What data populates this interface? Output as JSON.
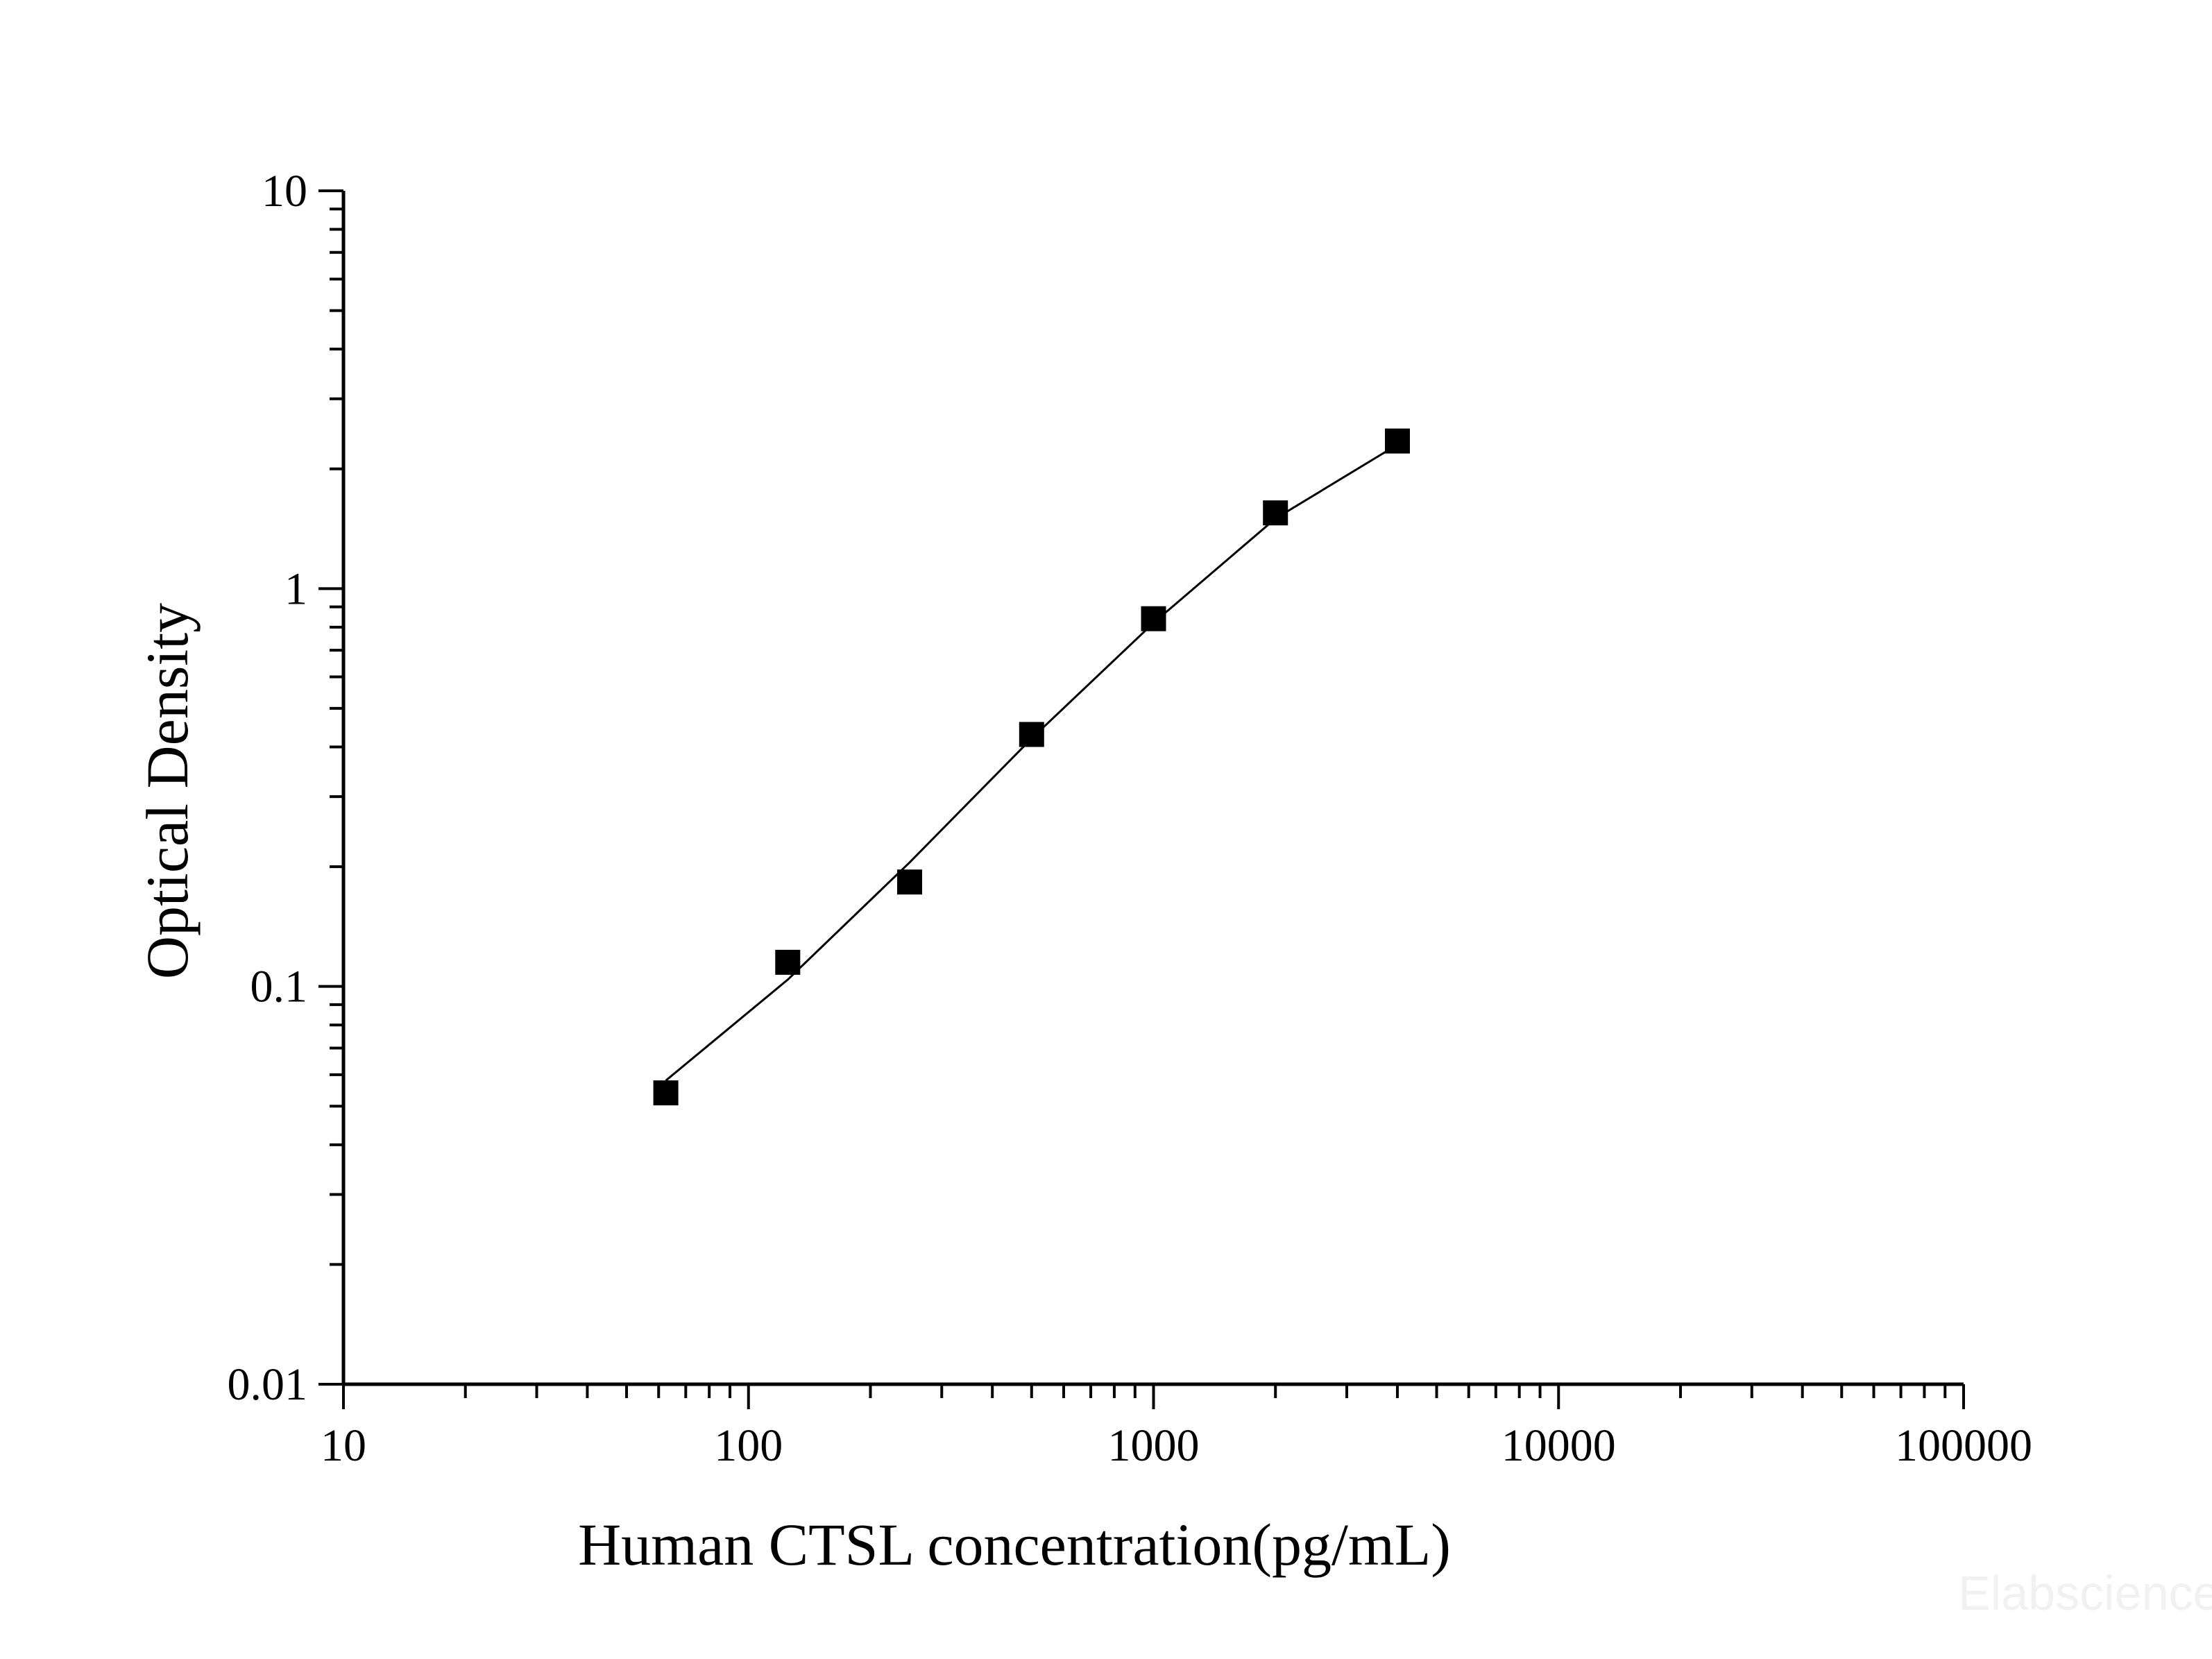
{
  "chart_data": {
    "type": "scatter",
    "xlabel": "Human CTSL concentration(pg/mL)",
    "ylabel": "Optical Density",
    "x_scale": "log",
    "y_scale": "log",
    "xlim": [
      10,
      100000
    ],
    "ylim": [
      0.01,
      10
    ],
    "x_ticks": [
      "10",
      "100",
      "1000",
      "10000",
      "100000"
    ],
    "y_ticks": [
      "0.01",
      "0.1",
      "1",
      "10"
    ],
    "grid": false,
    "series": [
      {
        "x": [
          62.5,
          125,
          250,
          500,
          1000,
          2000,
          4000
        ],
        "y": [
          0.054,
          0.115,
          0.183,
          0.43,
          0.84,
          1.55,
          2.35
        ],
        "marker": "square",
        "color": "#000000"
      }
    ],
    "fit_curve": {
      "x": [
        62.5,
        125,
        250,
        500,
        1000,
        2000,
        4000
      ],
      "y": [
        0.058,
        0.104,
        0.205,
        0.42,
        0.82,
        1.5,
        2.3
      ]
    },
    "watermark": "Elabscience"
  }
}
